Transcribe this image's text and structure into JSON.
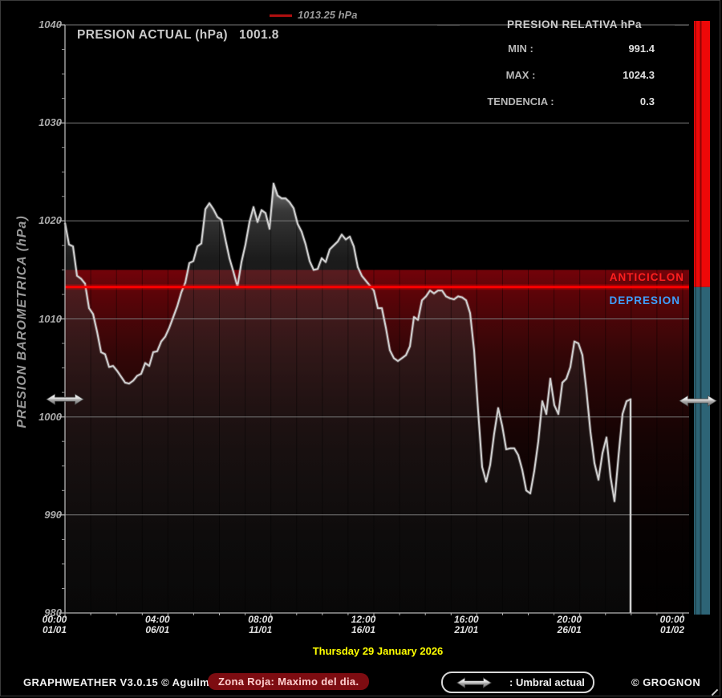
{
  "legend": {
    "label": "1013.25 hPa",
    "swatch_color": "#b01010"
  },
  "title": {
    "label": "PRESION ACTUAL (hPa)",
    "value": "1001.8"
  },
  "stats_panel": {
    "title": "PRESION RELATIVA hPa",
    "rows": [
      {
        "label": "MIN :",
        "value": "991.4"
      },
      {
        "label": "MAX :",
        "value": "1024.3"
      },
      {
        "label": "TENDENCIA :",
        "value": "0.3"
      }
    ]
  },
  "y_axis": {
    "title": "PRESION BAROMETRICA (hPa)",
    "ticks": [
      1040,
      1030,
      1020,
      1010,
      1000,
      990,
      980
    ],
    "min": 980,
    "max": 1040,
    "minor_step": 2.5
  },
  "x_axis": {
    "ticks": [
      {
        "time": "00:00",
        "date": "01/01"
      },
      {
        "time": "04:00",
        "date": "06/01"
      },
      {
        "time": "08:00",
        "date": "11/01"
      },
      {
        "time": "12:00",
        "date": "16/01"
      },
      {
        "time": "16:00",
        "date": "21/01"
      },
      {
        "time": "20:00",
        "date": "26/01"
      },
      {
        "time": "00:00",
        "date": "01/02"
      }
    ]
  },
  "zones": {
    "anticiclon": {
      "label": "ANTICICLON",
      "color": "#ff1f1f"
    },
    "depresion": {
      "label": "DEPRESION",
      "color": "#3fa0ff"
    },
    "red_zone_top_hpa": 1015,
    "threshold_hpa": 1013.25,
    "threshold_color": "#ff0000",
    "umbral_actual_hpa": 1001.8
  },
  "footer": {
    "app": "GRAPHWEATHER V3.0.15 © Aguilmard",
    "red_zone_note": "Zona Roja: Maximo del dia.",
    "umbral_label": ": Umbral actual",
    "credit": "© GROGNON",
    "date_label": "Thursday 29 January 2026",
    "date_color": "#ffff00"
  },
  "chart_data": {
    "type": "area",
    "title": "PRESION ACTUAL (hPa)",
    "ylabel": "PRESION BAROMETRICA (hPa)",
    "ylim": [
      980,
      1040
    ],
    "x_range_days": [
      0,
      31
    ],
    "x_start_day": 0,
    "x_step_days": 0.2013,
    "reference_line_hpa": 1013.25,
    "current_hpa": 1001.8,
    "min_hpa": 991.4,
    "max_hpa": 1024.3,
    "tendencia": 0.3,
    "grid": true,
    "values": [
      1019.8,
      1017.6,
      1017.4,
      1014.4,
      1014.1,
      1013.6,
      1011.1,
      1010.5,
      1008.7,
      1006.6,
      1006.4,
      1005.1,
      1005.2,
      1004.7,
      1004.1,
      1003.5,
      1003.4,
      1003.7,
      1004.2,
      1004.4,
      1005.5,
      1005.2,
      1006.6,
      1006.7,
      1007.7,
      1008.2,
      1009.1,
      1010.2,
      1011.3,
      1012.7,
      1013.7,
      1015.7,
      1015.9,
      1017.4,
      1017.7,
      1021.2,
      1021.8,
      1021.2,
      1020.4,
      1020.1,
      1018.1,
      1016.2,
      1014.8,
      1013.3,
      1015.8,
      1017.6,
      1019.9,
      1021.4,
      1019.9,
      1021.1,
      1020.8,
      1019.2,
      1023.8,
      1022.6,
      1022.3,
      1022.3,
      1021.9,
      1021.3,
      1019.7,
      1018.9,
      1017.6,
      1015.9,
      1015.0,
      1015.1,
      1016.2,
      1015.8,
      1017.1,
      1017.5,
      1017.9,
      1018.6,
      1018.1,
      1018.4,
      1017.4,
      1015.3,
      1014.4,
      1013.9,
      1013.4,
      1012.9,
      1011.1,
      1011.1,
      1009.1,
      1006.8,
      1006.0,
      1005.7,
      1006.0,
      1006.3,
      1007.2,
      1010.2,
      1009.9,
      1011.9,
      1012.3,
      1012.9,
      1012.6,
      1012.9,
      1012.9,
      1012.3,
      1012.1,
      1012.0,
      1012.3,
      1012.2,
      1011.9,
      1010.6,
      1006.8,
      1000.6,
      994.9,
      993.4,
      995.1,
      998.3,
      1000.9,
      999.1,
      996.7,
      996.8,
      996.8,
      996.1,
      994.6,
      992.5,
      992.2,
      994.5,
      997.5,
      1001.6,
      1000.3,
      1003.9,
      1001.2,
      1000.3,
      1003.5,
      1003.9,
      1005.1,
      1007.7,
      1007.5,
      1006.3,
      1002.7,
      998.5,
      995.3,
      993.6,
      996.3,
      997.9,
      993.9,
      991.4,
      996.0,
      1000.3,
      1001.6,
      1001.8
    ]
  }
}
